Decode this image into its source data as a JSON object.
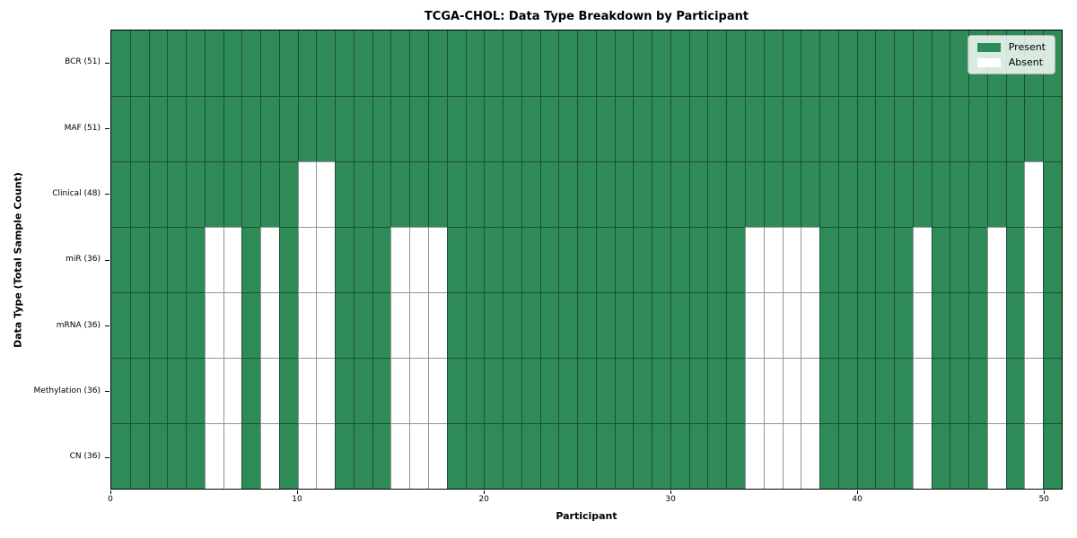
{
  "chart": {
    "title": "TCGA-CHOL: Data Type Breakdown by Participant",
    "xlabel": "Participant",
    "ylabel": "Data Type (Total Sample Count)"
  },
  "chart_data": {
    "type": "heatmap",
    "title": "TCGA-CHOL: Data Type Breakdown by Participant",
    "xlabel": "Participant",
    "ylabel": "Data Type (Total Sample Count)",
    "n_participants": 51,
    "xlim": [
      0,
      51
    ],
    "x_ticks": [
      0,
      10,
      20,
      30,
      40,
      50
    ],
    "grid": true,
    "legend_entries": [
      "Present",
      "Absent"
    ],
    "legend_position": "upper right",
    "colors": {
      "present": "#2e8b57",
      "absent": "#ffffff",
      "grid_line": "rgba(0,0,0,0.42)",
      "spine": "#000000"
    },
    "rows": [
      {
        "label": "BCR (51)",
        "data_type": "BCR",
        "total_samples": 51,
        "absent_participants": []
      },
      {
        "label": "MAF (51)",
        "data_type": "MAF",
        "total_samples": 51,
        "absent_participants": []
      },
      {
        "label": "Clinical (48)",
        "data_type": "Clinical",
        "total_samples": 48,
        "absent_participants": [
          10,
          11,
          49
        ]
      },
      {
        "label": "miR (36)",
        "data_type": "miR",
        "total_samples": 36,
        "absent_participants": [
          5,
          6,
          8,
          10,
          11,
          15,
          16,
          17,
          34,
          35,
          36,
          37,
          43,
          47,
          49
        ]
      },
      {
        "label": "mRNA (36)",
        "data_type": "mRNA",
        "total_samples": 36,
        "absent_participants": [
          5,
          6,
          8,
          10,
          11,
          15,
          16,
          17,
          34,
          35,
          36,
          37,
          43,
          47,
          49
        ]
      },
      {
        "label": "Methylation (36)",
        "data_type": "Methylation",
        "total_samples": 36,
        "absent_participants": [
          5,
          6,
          8,
          10,
          11,
          15,
          16,
          17,
          34,
          35,
          36,
          37,
          43,
          47,
          49
        ]
      },
      {
        "label": "CN (36)",
        "data_type": "CN",
        "total_samples": 36,
        "absent_participants": [
          5,
          6,
          8,
          10,
          11,
          15,
          16,
          17,
          34,
          35,
          36,
          37,
          43,
          47,
          49
        ]
      }
    ]
  }
}
